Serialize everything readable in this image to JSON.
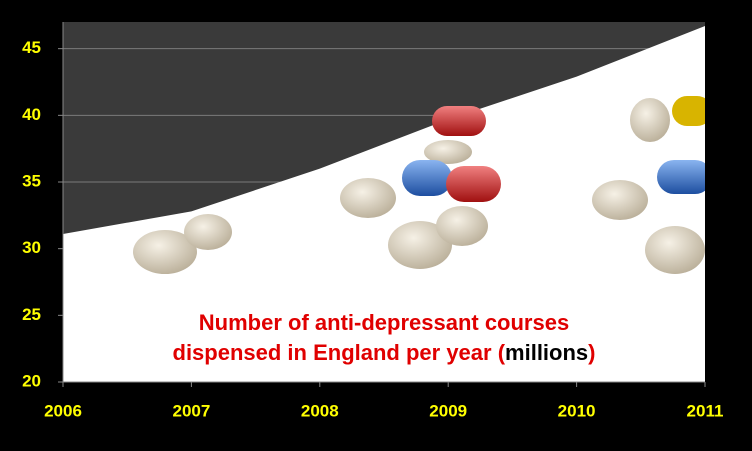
{
  "chart_data": {
    "type": "area",
    "title_lines": [
      [
        {
          "text": "Number of anti-depressant courses",
          "color": "#e00000"
        }
      ],
      [
        {
          "text": "dispensed in England per year (",
          "color": "#e00000"
        },
        {
          "text": "millions",
          "color": "#000000"
        },
        {
          "text": ")",
          "color": "#e00000"
        }
      ]
    ],
    "x": [
      2006,
      2007,
      2008,
      2009,
      2010,
      2011
    ],
    "values": [
      31.1,
      32.8,
      36.0,
      39.7,
      42.9,
      46.7
    ],
    "area_color": "#ffffff",
    "background_color": "#3a3a3a",
    "tick_color": "#ffff00",
    "xlim": [
      2006,
      2011
    ],
    "xticks": [
      2006,
      2007,
      2008,
      2009,
      2010,
      2011
    ],
    "ylim": [
      20,
      47
    ],
    "yticks": [
      20,
      25,
      30,
      35,
      40,
      45
    ],
    "grid": true
  }
}
